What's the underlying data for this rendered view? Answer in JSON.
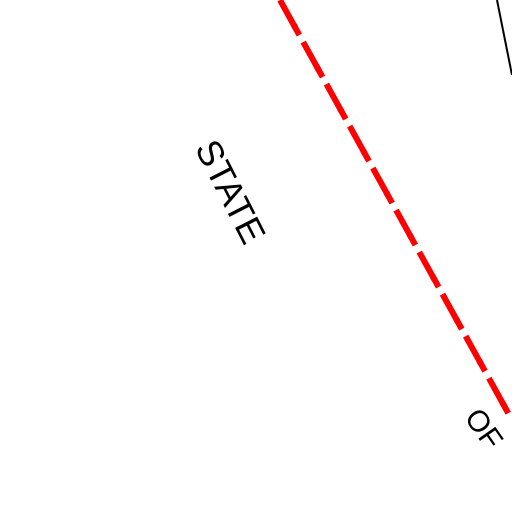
{
  "labels": {
    "state": "STATE",
    "of": "OF"
  }
}
